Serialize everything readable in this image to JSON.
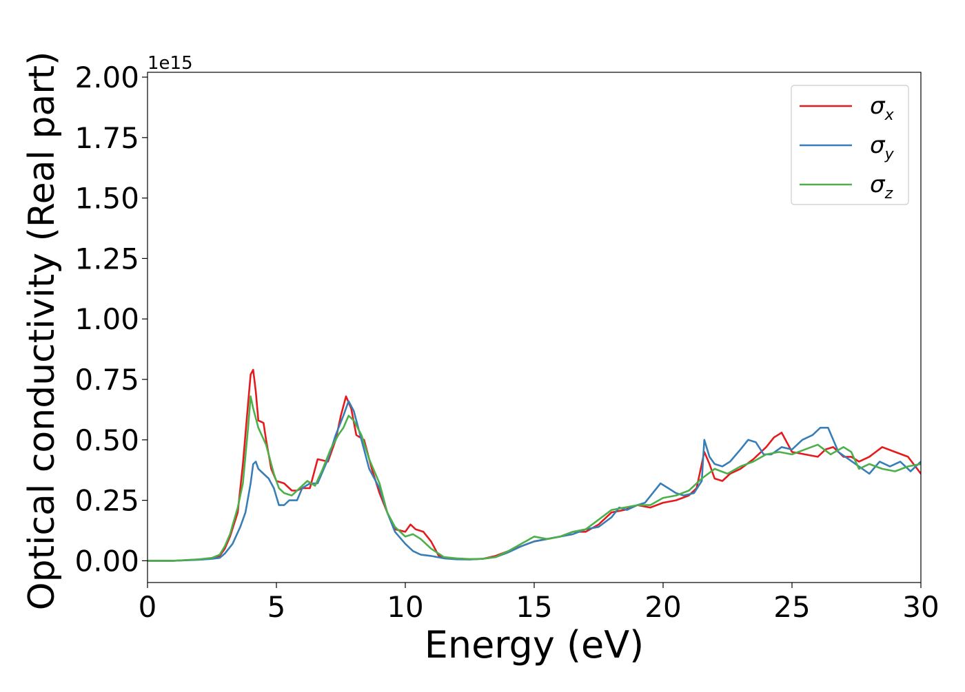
{
  "chart_data": {
    "type": "line",
    "xlabel": "Energy (eV)",
    "ylabel": "Optical conductivity (Real part)",
    "y_offset_label": "1e15",
    "y_scale": 1000000000000000.0,
    "xlim": [
      0,
      30
    ],
    "ylim": [
      -0.09,
      2.02
    ],
    "x_ticks": [
      0,
      5,
      10,
      15,
      20,
      25,
      30
    ],
    "x_tick_labels": [
      "0",
      "5",
      "10",
      "15",
      "20",
      "25",
      "30"
    ],
    "y_ticks": [
      0.0,
      0.25,
      0.5,
      0.75,
      1.0,
      1.25,
      1.5,
      1.75,
      2.0
    ],
    "y_tick_labels": [
      "0.00",
      "0.25",
      "0.50",
      "0.75",
      "1.00",
      "1.25",
      "1.50",
      "1.75",
      "2.00"
    ],
    "grid": false,
    "legend_position": "top-right",
    "series": [
      {
        "name": "σx",
        "legend_base": "σ",
        "legend_sub": "x",
        "color": "#e41a1c",
        "x": [
          0,
          1,
          2,
          2.5,
          2.8,
          3.0,
          3.2,
          3.5,
          3.7,
          3.9,
          4.0,
          4.1,
          4.2,
          4.3,
          4.5,
          4.6,
          4.8,
          5.0,
          5.3,
          5.6,
          5.8,
          6.0,
          6.3,
          6.6,
          7.0,
          7.3,
          7.5,
          7.7,
          7.9,
          8.1,
          8.4,
          8.7,
          9.0,
          9.3,
          9.6,
          10.0,
          10.2,
          10.4,
          10.7,
          11.0,
          11.3,
          11.6,
          12.0,
          12.5,
          13.0,
          13.5,
          14.0,
          14.5,
          15.0,
          15.5,
          16.0,
          16.5,
          17.0,
          17.5,
          18.0,
          18.5,
          19.0,
          19.5,
          20.0,
          20.5,
          21.0,
          21.3,
          21.6,
          21.8,
          22.0,
          22.3,
          22.6,
          23.0,
          23.5,
          24.0,
          24.3,
          24.6,
          25.0,
          25.5,
          26.0,
          26.3,
          26.6,
          27.0,
          27.3,
          27.6,
          28.0,
          28.5,
          29.0,
          29.5,
          30.0
        ],
        "values": [
          0.0,
          0.0,
          0.005,
          0.01,
          0.02,
          0.05,
          0.1,
          0.2,
          0.4,
          0.65,
          0.77,
          0.79,
          0.7,
          0.58,
          0.57,
          0.5,
          0.38,
          0.33,
          0.32,
          0.29,
          0.29,
          0.3,
          0.3,
          0.42,
          0.41,
          0.5,
          0.6,
          0.68,
          0.63,
          0.52,
          0.5,
          0.38,
          0.28,
          0.2,
          0.13,
          0.12,
          0.15,
          0.13,
          0.12,
          0.08,
          0.02,
          0.01,
          0.008,
          0.006,
          0.008,
          0.02,
          0.04,
          0.06,
          0.08,
          0.09,
          0.1,
          0.12,
          0.12,
          0.15,
          0.2,
          0.21,
          0.23,
          0.22,
          0.24,
          0.25,
          0.27,
          0.3,
          0.45,
          0.4,
          0.34,
          0.33,
          0.36,
          0.38,
          0.42,
          0.47,
          0.51,
          0.53,
          0.45,
          0.44,
          0.43,
          0.46,
          0.47,
          0.43,
          0.43,
          0.41,
          0.43,
          0.47,
          0.45,
          0.43,
          0.36
        ]
      },
      {
        "name": "σy",
        "legend_base": "σ",
        "legend_sub": "y",
        "color": "#377eb8",
        "x": [
          0,
          1,
          2,
          2.5,
          2.8,
          3.0,
          3.3,
          3.6,
          3.8,
          4.0,
          4.1,
          4.2,
          4.3,
          4.5,
          4.7,
          4.9,
          5.1,
          5.3,
          5.5,
          5.8,
          6.0,
          6.3,
          6.6,
          7.0,
          7.3,
          7.6,
          7.8,
          8.0,
          8.3,
          8.6,
          9.0,
          9.3,
          9.6,
          10.0,
          10.3,
          10.6,
          11.0,
          11.5,
          12.0,
          12.5,
          13.0,
          13.5,
          14.0,
          14.5,
          15.0,
          15.5,
          16.0,
          16.5,
          17.0,
          17.5,
          18.0,
          18.3,
          18.6,
          19.0,
          19.3,
          19.6,
          19.9,
          20.2,
          20.5,
          20.8,
          21.2,
          21.5,
          21.6,
          21.8,
          22.0,
          22.3,
          22.6,
          23.0,
          23.3,
          23.6,
          23.9,
          24.2,
          24.6,
          25.0,
          25.4,
          25.8,
          26.1,
          26.4,
          26.8,
          27.2,
          27.6,
          28.0,
          28.4,
          28.8,
          29.2,
          29.6,
          30.0
        ],
        "values": [
          0.0,
          0.0,
          0.004,
          0.008,
          0.012,
          0.03,
          0.07,
          0.14,
          0.2,
          0.32,
          0.4,
          0.41,
          0.38,
          0.36,
          0.34,
          0.3,
          0.23,
          0.23,
          0.25,
          0.25,
          0.3,
          0.32,
          0.32,
          0.42,
          0.52,
          0.6,
          0.66,
          0.62,
          0.5,
          0.38,
          0.3,
          0.2,
          0.12,
          0.07,
          0.04,
          0.025,
          0.02,
          0.01,
          0.006,
          0.005,
          0.008,
          0.015,
          0.035,
          0.06,
          0.08,
          0.09,
          0.1,
          0.11,
          0.13,
          0.14,
          0.18,
          0.22,
          0.21,
          0.23,
          0.24,
          0.28,
          0.32,
          0.3,
          0.28,
          0.27,
          0.28,
          0.33,
          0.5,
          0.43,
          0.4,
          0.39,
          0.41,
          0.46,
          0.5,
          0.49,
          0.44,
          0.44,
          0.47,
          0.46,
          0.5,
          0.52,
          0.55,
          0.55,
          0.45,
          0.42,
          0.39,
          0.36,
          0.41,
          0.39,
          0.41,
          0.37,
          0.41
        ]
      },
      {
        "name": "σz",
        "legend_base": "σ",
        "legend_sub": "z",
        "color": "#4daf4a",
        "x": [
          0,
          1,
          2,
          2.5,
          2.8,
          3.0,
          3.2,
          3.5,
          3.7,
          3.9,
          4.0,
          4.1,
          4.3,
          4.6,
          4.9,
          5.1,
          5.3,
          5.6,
          5.9,
          6.2,
          6.5,
          6.8,
          7.1,
          7.4,
          7.6,
          7.8,
          8.0,
          8.3,
          8.6,
          9.0,
          9.3,
          9.6,
          10.0,
          10.3,
          10.6,
          11.0,
          11.5,
          12.0,
          12.5,
          13.0,
          13.5,
          14.0,
          14.5,
          15.0,
          15.5,
          16.0,
          16.5,
          17.0,
          17.5,
          18.0,
          18.5,
          19.0,
          19.5,
          20.0,
          20.5,
          21.0,
          21.5,
          22.0,
          22.5,
          23.0,
          23.5,
          24.0,
          24.5,
          25.0,
          25.5,
          26.0,
          26.5,
          27.0,
          27.3,
          27.6,
          28.0,
          28.5,
          29.0,
          29.5,
          30.0
        ],
        "values": [
          0.0,
          0.0,
          0.006,
          0.012,
          0.025,
          0.06,
          0.11,
          0.22,
          0.32,
          0.55,
          0.68,
          0.63,
          0.55,
          0.48,
          0.36,
          0.3,
          0.28,
          0.27,
          0.3,
          0.33,
          0.31,
          0.38,
          0.46,
          0.52,
          0.55,
          0.6,
          0.58,
          0.52,
          0.42,
          0.32,
          0.2,
          0.14,
          0.1,
          0.11,
          0.09,
          0.05,
          0.015,
          0.01,
          0.007,
          0.008,
          0.015,
          0.04,
          0.07,
          0.1,
          0.09,
          0.1,
          0.12,
          0.13,
          0.17,
          0.21,
          0.22,
          0.23,
          0.23,
          0.26,
          0.27,
          0.29,
          0.34,
          0.38,
          0.36,
          0.39,
          0.41,
          0.44,
          0.45,
          0.44,
          0.46,
          0.48,
          0.44,
          0.47,
          0.45,
          0.38,
          0.4,
          0.38,
          0.37,
          0.39,
          0.4
        ]
      }
    ]
  }
}
